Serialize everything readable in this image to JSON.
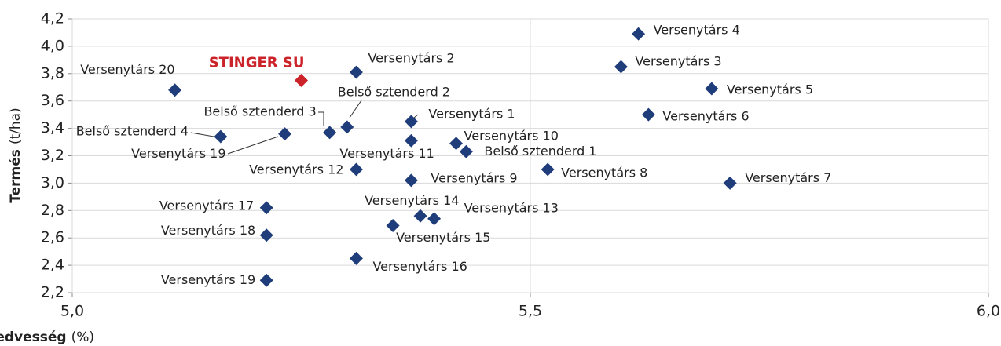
{
  "chart_data": {
    "type": "scatter",
    "y_label": "Termés",
    "y_unit": "(t/ha)",
    "x_label": "Betakarításkori szemnedvesség",
    "x_unit": "(%)",
    "xlim": [
      5.0,
      6.0
    ],
    "xticks": [
      {
        "value": 5.0,
        "label": "5,0"
      },
      {
        "value": 5.5,
        "label": "5,5"
      },
      {
        "value": 6.0,
        "label": "6,0"
      }
    ],
    "ylim": [
      2.2,
      4.2
    ],
    "yticks": [
      {
        "value": 2.2,
        "label": "2,2"
      },
      {
        "value": 2.4,
        "label": "2,4"
      },
      {
        "value": 2.6,
        "label": "2,6"
      },
      {
        "value": 2.8,
        "label": "2,8"
      },
      {
        "value": 3.0,
        "label": "3,0"
      },
      {
        "value": 3.2,
        "label": "3,2"
      },
      {
        "value": 3.4,
        "label": "3,4"
      },
      {
        "value": 3.6,
        "label": "3,6"
      },
      {
        "value": 3.8,
        "label": "3,8"
      },
      {
        "value": 4.0,
        "label": "4,0"
      },
      {
        "value": 4.2,
        "label": "4,2"
      }
    ],
    "grid": true,
    "labels": [
      "Versenytárs 4",
      "Versenytárs 3",
      "Versenytárs 2",
      "STINGER SU",
      "Versenytárs 20",
      "Versenytárs 5",
      "Belső sztenderd 2",
      "Versenytárs 1",
      "Versenytárs 6",
      "Belső sztenderd 3",
      "Versenytárs 19",
      "Belső sztenderd 4",
      "Versenytárs 10",
      "Versenytárs 11",
      "Belső sztenderd 1",
      "Versenytárs 12",
      "Versenytárs 8",
      "Versenytárs 9",
      "Versenytárs 7",
      "Versenytárs 17",
      "Versenytárs 14",
      "Versenytárs 13",
      "Versenytárs 15",
      "Versenytárs 18",
      "Versenytárs 16",
      "Versenytárs 19"
    ],
    "x": [
      5.618,
      5.599,
      5.31,
      5.25,
      5.112,
      5.698,
      5.3,
      5.37,
      5.629,
      5.281,
      5.232,
      5.162,
      5.419,
      5.37,
      5.43,
      5.31,
      5.519,
      5.37,
      5.718,
      5.212,
      5.38,
      5.395,
      5.35,
      5.212,
      5.31,
      5.212
    ],
    "y": [
      4.09,
      3.85,
      3.81,
      3.75,
      3.68,
      3.69,
      3.41,
      3.45,
      3.5,
      3.37,
      3.36,
      3.34,
      3.29,
      3.31,
      3.23,
      3.1,
      3.1,
      3.02,
      3.0,
      2.82,
      2.76,
      2.74,
      2.69,
      2.62,
      2.45,
      2.29
    ],
    "colors": [
      "#1f3d7a",
      "#1f3d7a",
      "#1f3d7a",
      "#cc2229",
      "#1f3d7a",
      "#1f3d7a",
      "#1f3d7a",
      "#1f3d7a",
      "#1f3d7a",
      "#1f3d7a",
      "#1f3d7a",
      "#1f3d7a",
      "#1f3d7a",
      "#1f3d7a",
      "#1f3d7a",
      "#1f3d7a",
      "#1f3d7a",
      "#1f3d7a",
      "#1f3d7a",
      "#1f3d7a",
      "#1f3d7a",
      "#1f3d7a",
      "#1f3d7a",
      "#1f3d7a",
      "#1f3d7a",
      "#1f3d7a"
    ]
  }
}
